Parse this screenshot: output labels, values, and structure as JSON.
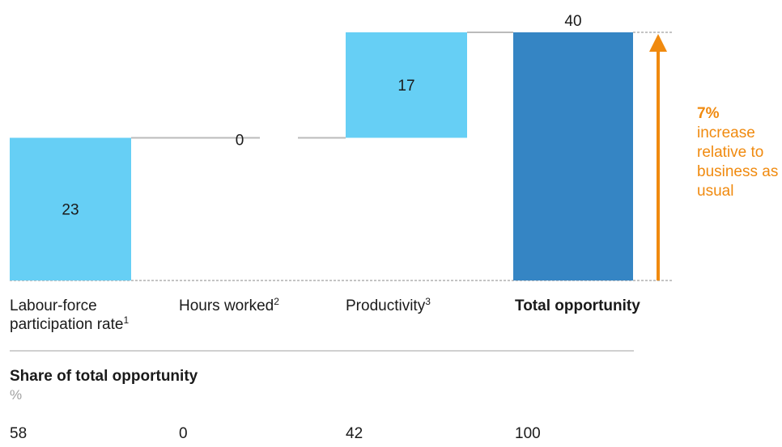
{
  "chart_data": {
    "type": "bar",
    "subtype": "waterfall",
    "categories": [
      {
        "label": "Labour-force participation rate",
        "sup": "1"
      },
      {
        "label": "Hours worked",
        "sup": "2"
      },
      {
        "label": "Productivity",
        "sup": "3"
      },
      {
        "label": "Total opportunity",
        "sup": ""
      }
    ],
    "values": [
      23,
      0,
      17,
      40
    ],
    "bar_kinds": [
      "increment",
      "increment",
      "increment",
      "total"
    ],
    "ylim": [
      0,
      40
    ],
    "grid": false,
    "legend": "none",
    "colors": {
      "increment": "#66cff5",
      "total": "#3585c4",
      "arrow": "#f08a0f",
      "connector": "#bbbbbb"
    },
    "annotation": {
      "value": "7%",
      "text": "increase relative to business as usual"
    },
    "share_table": {
      "title": "Share of total opportunity",
      "unit": "%",
      "values": [
        "58",
        "0",
        "42",
        "100"
      ]
    }
  }
}
